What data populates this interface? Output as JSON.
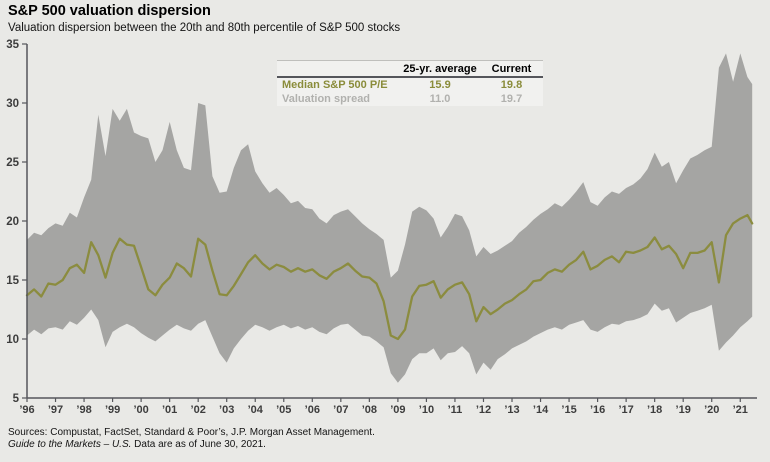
{
  "header": {
    "title": "S&P 500 valuation dispersion",
    "subtitle": "Valuation dispersion between the 20th and 80th percentile of S&P 500 stocks"
  },
  "legend_table": {
    "col_headers": [
      "25-yr. average",
      "Current"
    ],
    "rows": [
      {
        "label": "Median S&P 500 P/E",
        "avg": "15.9",
        "current": "19.8",
        "color": "#8a8c3a"
      },
      {
        "label": "Valuation spread",
        "avg": "11.0",
        "current": "19.7",
        "color": "#b1b1ae"
      }
    ]
  },
  "footer": {
    "sources": "Sources: Compustat, FactSet, Standard & Poor’s, J.P. Morgan Asset Management.",
    "gtm_italic": "Guide to the Markets – U.S.",
    "gtm_rest": " Data are as of June 30, 2021."
  },
  "chart_data": {
    "type": "area",
    "title": "S&P 500 valuation dispersion",
    "subtitle": "Valuation dispersion between the 20th and 80th percentile of S&P 500 stocks",
    "legend_position": "top-center-table",
    "grid": false,
    "x_axis": {
      "start": 1996,
      "step": 0.25,
      "n_points": 103,
      "last_x": 2021.42,
      "tick_labels": [
        "’96",
        "’97",
        "’98",
        "’99",
        "’00",
        "’01",
        "’02",
        "’03",
        "’04",
        "’05",
        "’06",
        "’07",
        "’08",
        "’09",
        "’10",
        "’11",
        "’12",
        "’13",
        "’14",
        "’15",
        "’16",
        "’17",
        "’18",
        "’19",
        "’20",
        "’21"
      ]
    },
    "y_axis": {
      "range": [
        5,
        35
      ],
      "ticks": [
        35,
        30,
        25,
        20,
        15,
        10,
        5
      ]
    },
    "series": [
      {
        "name": "80th percentile P/E (band top)",
        "role": "band_upper",
        "values": [
          18.4,
          19.0,
          18.8,
          19.4,
          19.8,
          19.6,
          20.7,
          20.3,
          22.0,
          23.5,
          29.0,
          25.5,
          29.5,
          28.5,
          29.5,
          27.5,
          27.2,
          27.0,
          25.0,
          26.0,
          28.4,
          26.0,
          24.5,
          24.3,
          30.0,
          29.8,
          23.8,
          22.4,
          22.5,
          24.5,
          26.0,
          26.5,
          24.2,
          23.2,
          22.4,
          22.8,
          22.2,
          21.5,
          21.7,
          21.1,
          21.0,
          20.2,
          19.8,
          20.5,
          20.8,
          21.0,
          20.4,
          19.8,
          19.3,
          18.9,
          18.4,
          15.2,
          15.8,
          18.0,
          20.8,
          21.2,
          20.9,
          20.2,
          18.6,
          19.5,
          20.6,
          20.4,
          19.2,
          17.0,
          17.8,
          17.2,
          17.5,
          17.9,
          18.3,
          19.0,
          19.5,
          20.1,
          20.6,
          21.0,
          21.5,
          21.2,
          21.8,
          22.5,
          23.3,
          21.6,
          21.3,
          22.0,
          22.5,
          22.3,
          22.8,
          23.1,
          23.6,
          24.4,
          25.8,
          24.6,
          25.0,
          23.2,
          24.3,
          25.3,
          25.6,
          26.0,
          26.3,
          33.0,
          34.2,
          31.8,
          34.2,
          32.2,
          31.6
        ]
      },
      {
        "name": "Median S&P 500 P/E",
        "role": "line",
        "values": [
          13.7,
          14.2,
          13.6,
          14.7,
          14.6,
          15.0,
          16.0,
          16.3,
          15.6,
          18.2,
          17.1,
          15.2,
          17.3,
          18.5,
          18.0,
          17.9,
          16.1,
          14.2,
          13.7,
          14.6,
          15.2,
          16.4,
          16.0,
          15.3,
          18.5,
          18.0,
          15.8,
          13.8,
          13.7,
          14.5,
          15.5,
          16.5,
          17.1,
          16.4,
          15.9,
          16.3,
          16.1,
          15.7,
          16.0,
          15.7,
          15.9,
          15.4,
          15.1,
          15.7,
          16.0,
          16.4,
          15.8,
          15.3,
          15.2,
          14.7,
          13.2,
          10.3,
          10.0,
          10.8,
          13.6,
          14.5,
          14.6,
          14.9,
          13.5,
          14.2,
          14.6,
          14.8,
          13.8,
          11.5,
          12.7,
          12.1,
          12.5,
          13.0,
          13.3,
          13.8,
          14.2,
          14.9,
          15.0,
          15.6,
          15.9,
          15.7,
          16.3,
          16.7,
          17.4,
          15.9,
          16.2,
          16.7,
          17.0,
          16.5,
          17.4,
          17.3,
          17.5,
          17.8,
          18.6,
          17.6,
          17.9,
          17.2,
          16.0,
          17.3,
          17.3,
          17.5,
          18.2,
          14.8,
          18.8,
          19.8,
          20.2,
          20.5,
          19.8
        ]
      },
      {
        "name": "20th percentile P/E (band bottom)",
        "role": "band_lower",
        "values": [
          10.3,
          10.8,
          10.4,
          10.9,
          11.0,
          10.8,
          11.5,
          11.2,
          11.8,
          12.5,
          11.6,
          9.3,
          10.6,
          11.0,
          11.3,
          11.0,
          10.5,
          10.1,
          9.8,
          10.3,
          10.8,
          11.2,
          10.9,
          10.7,
          11.3,
          11.6,
          10.2,
          8.8,
          8.0,
          9.2,
          10.0,
          10.7,
          11.2,
          11.0,
          10.7,
          11.0,
          11.2,
          10.9,
          11.1,
          10.8,
          11.0,
          10.6,
          10.4,
          10.9,
          11.2,
          11.3,
          10.8,
          10.3,
          10.2,
          9.8,
          9.3,
          7.1,
          6.3,
          7.0,
          8.3,
          8.8,
          8.8,
          9.2,
          8.2,
          8.8,
          8.9,
          9.4,
          8.8,
          7.0,
          8.0,
          7.4,
          8.3,
          8.7,
          9.2,
          9.5,
          9.8,
          10.2,
          10.5,
          10.8,
          11.0,
          10.8,
          11.2,
          11.4,
          11.6,
          10.8,
          10.6,
          11.0,
          11.3,
          11.2,
          11.5,
          11.6,
          11.8,
          12.1,
          13.0,
          12.4,
          12.6,
          11.4,
          11.8,
          12.2,
          12.4,
          12.6,
          12.9,
          9.0,
          9.7,
          10.3,
          11.0,
          11.5,
          11.9
        ]
      }
    ],
    "colors": {
      "band": "#a5a5a3",
      "line": "#8b8c3f",
      "axis": "#55565b",
      "tick_label": "#3d3d3d",
      "background": "#e9e9e6"
    }
  }
}
